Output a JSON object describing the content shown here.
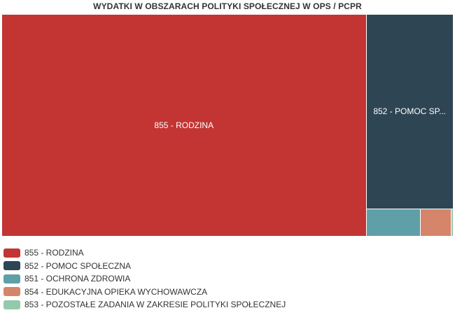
{
  "chart_data": {
    "type": "treemap",
    "title": "WYDATKI W OBSZARACH POLITYKI SPOŁECZNEJ W OPS / PCPR",
    "legend_position": "bottom-left",
    "categories": [
      {
        "name": "855 - RODZINA",
        "tile_label": "855 - RODZINA",
        "value": 80.7,
        "color": "#c33532"
      },
      {
        "name": "852 - POMOC SPOŁECZNA",
        "tile_label": "852 - POMOC SP...",
        "value": 16.9,
        "color": "#2e4554"
      },
      {
        "name": "851 - OCHRONA ZDROWIA",
        "tile_label": "",
        "value": 1.5,
        "color": "#5fa0a8"
      },
      {
        "name": "854 - EDUKACYJNA OPIEKA WYCHOWAWCZA",
        "tile_label": "",
        "value": 0.85,
        "color": "#d5856a"
      },
      {
        "name": "853 - POZOSTAŁE ZADANIA W ZAKRESIE POLITYKI SPOŁECZNEJ",
        "tile_label": "",
        "value": 0.05,
        "color": "#93c9ad"
      }
    ]
  }
}
